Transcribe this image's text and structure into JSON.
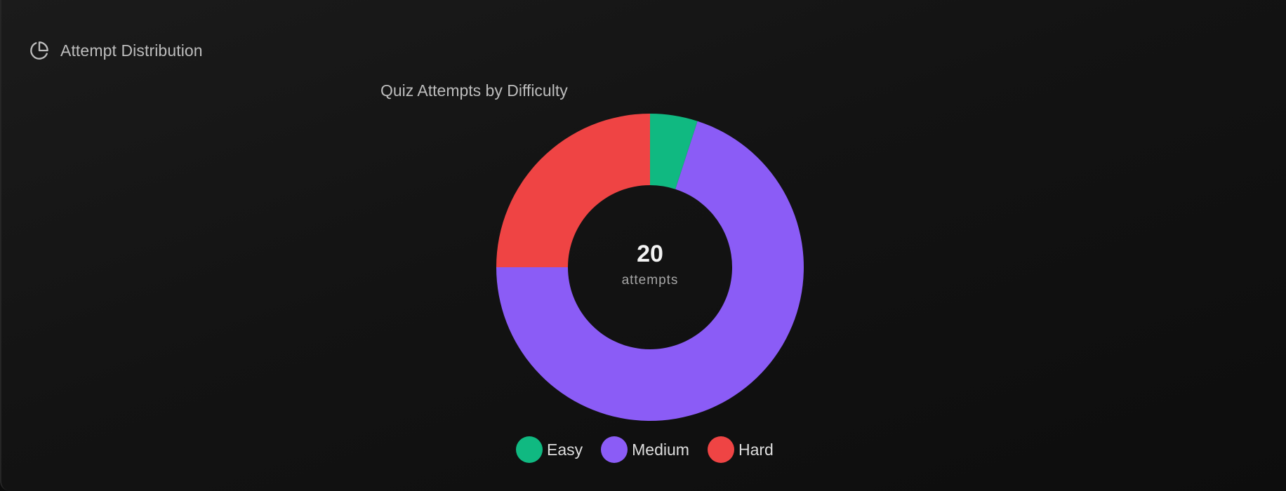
{
  "card": {
    "title": "Attempt Distribution",
    "icon": "pie-chart-icon"
  },
  "chart": {
    "title": "Quiz Attempts by Difficulty",
    "center_value": "20",
    "center_label": "attempts",
    "legend": [
      {
        "label": "Easy",
        "color": "#10b981"
      },
      {
        "label": "Medium",
        "color": "#8b5cf6"
      },
      {
        "label": "Hard",
        "color": "#ef4444"
      }
    ]
  },
  "chart_data": {
    "type": "pie",
    "variant": "donut",
    "title": "Quiz Attempts by Difficulty",
    "categories": [
      "Easy",
      "Medium",
      "Hard"
    ],
    "values": [
      1,
      14,
      5
    ],
    "colors": [
      "#10b981",
      "#8b5cf6",
      "#ef4444"
    ],
    "total": 20,
    "center_text": "20 attempts",
    "legend_position": "bottom"
  }
}
